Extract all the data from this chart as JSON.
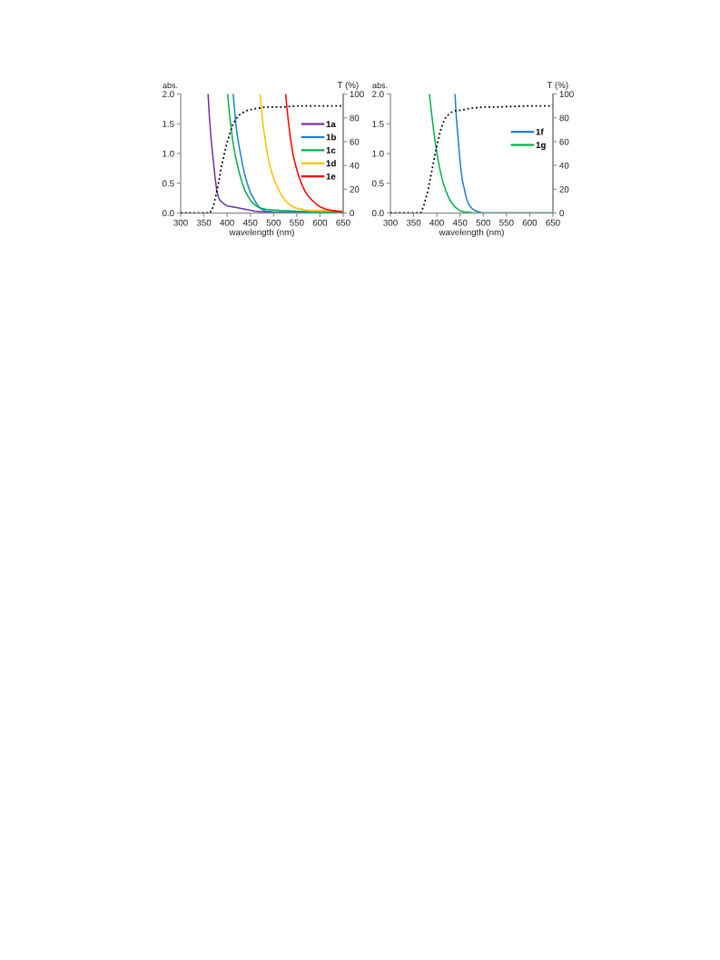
{
  "chart_data": [
    {
      "type": "line",
      "xlabel": "wavelength (nm)",
      "ylabel": "abs.",
      "y2label": "T (%)",
      "xlim": [
        300,
        650
      ],
      "xticks": [
        300,
        350,
        400,
        450,
        500,
        550,
        600,
        650
      ],
      "ylim": [
        0,
        2.0
      ],
      "yticks": [
        {
          "value": 0,
          "label": "0.0"
        },
        {
          "value": 0.5,
          "label": "0.5"
        },
        {
          "value": 1.0,
          "label": "1.0"
        },
        {
          "value": 1.5,
          "label": "1.5"
        },
        {
          "value": 2.0,
          "label": "2.0"
        }
      ],
      "y2lim": [
        0,
        100
      ],
      "y2ticks": [
        0,
        20,
        40,
        60,
        80,
        100
      ],
      "legend": "top right",
      "series": [
        {
          "name": "1a",
          "color": "#7030a0",
          "x": [
            359,
            362,
            366,
            370,
            374,
            378,
            382,
            386,
            392,
            400,
            420,
            440,
            460,
            480,
            500,
            550,
            650
          ],
          "values": [
            2.0,
            1.6,
            1.2,
            0.9,
            0.6,
            0.36,
            0.25,
            0.2,
            0.16,
            0.12,
            0.09,
            0.06,
            0.03,
            0.02,
            0.01,
            0.01,
            0.0
          ]
        },
        {
          "name": "1b",
          "color": "#1f7ed0",
          "x": [
            413,
            419,
            425,
            432,
            438,
            445,
            451,
            458,
            464,
            471,
            478,
            484,
            500,
            550,
            650
          ],
          "values": [
            2.0,
            1.47,
            1.15,
            0.86,
            0.64,
            0.46,
            0.33,
            0.23,
            0.15,
            0.08,
            0.05,
            0.03,
            0.02,
            0.01,
            0.0
          ]
        },
        {
          "name": "1c",
          "color": "#00b050",
          "x": [
            401,
            406,
            412,
            418,
            425,
            432,
            438,
            445,
            451,
            458,
            464,
            474,
            484,
            500,
            516,
            550,
            582,
            650
          ],
          "values": [
            2.0,
            1.6,
            1.22,
            0.95,
            0.71,
            0.52,
            0.38,
            0.28,
            0.2,
            0.15,
            0.11,
            0.08,
            0.06,
            0.05,
            0.04,
            0.03,
            0.02,
            0.02
          ]
        },
        {
          "name": "1d",
          "color": "#ffc000",
          "x": [
            471,
            477,
            484,
            490,
            497,
            503,
            510,
            516,
            523,
            530,
            536,
            549,
            569,
            614,
            650
          ],
          "values": [
            2.0,
            1.5,
            1.12,
            0.86,
            0.66,
            0.52,
            0.41,
            0.31,
            0.23,
            0.17,
            0.13,
            0.08,
            0.05,
            0.04,
            0.03
          ]
        },
        {
          "name": "1e",
          "color": "#ff0000",
          "x": [
            526,
            531,
            536,
            542,
            549,
            555,
            562,
            568,
            575,
            582,
            588,
            595,
            601,
            614,
            627,
            650
          ],
          "values": [
            2.0,
            1.6,
            1.27,
            0.98,
            0.76,
            0.6,
            0.46,
            0.36,
            0.28,
            0.22,
            0.18,
            0.13,
            0.1,
            0.06,
            0.04,
            0.02
          ]
        },
        {
          "color": "#000000",
          "axis": "y2",
          "line_style": "dotted",
          "x": [
            300,
            363,
            370,
            376,
            383,
            387,
            393,
            399,
            406,
            412,
            419,
            425,
            432,
            442,
            451,
            465,
            484,
            520,
            549,
            600,
            650
          ],
          "values": [
            0,
            0,
            5,
            15,
            28,
            38,
            48,
            58,
            67,
            74,
            79,
            82,
            84,
            86,
            87,
            88,
            89,
            89,
            90,
            90,
            90
          ]
        }
      ]
    },
    {
      "type": "line",
      "xlabel": "wavelength (nm)",
      "ylabel": "abs.",
      "y2label": "T (%)",
      "xlim": [
        300,
        650
      ],
      "xticks": [
        300,
        350,
        400,
        450,
        500,
        550,
        600,
        650
      ],
      "ylim": [
        0,
        2.0
      ],
      "yticks": [
        {
          "value": 0,
          "label": "0.0"
        },
        {
          "value": 0.5,
          "label": "0.5"
        },
        {
          "value": 1.0,
          "label": "1.0"
        },
        {
          "value": 1.5,
          "label": "1.5"
        },
        {
          "value": 2.0,
          "label": "2.0"
        }
      ],
      "y2lim": [
        0,
        100
      ],
      "y2ticks": [
        0,
        20,
        40,
        60,
        80,
        100
      ],
      "legend": "right",
      "series": [
        {
          "name": "1f",
          "color": "#1f7ed0",
          "x": [
            439,
            442,
            446,
            449,
            452,
            455,
            459,
            462,
            465,
            470,
            475,
            480,
            485,
            490,
            498,
            650
          ],
          "values": [
            2.0,
            1.6,
            1.23,
            0.95,
            0.72,
            0.55,
            0.41,
            0.3,
            0.21,
            0.13,
            0.08,
            0.05,
            0.03,
            0.02,
            0.0,
            0.0
          ]
        },
        {
          "name": "1g",
          "color": "#00b050",
          "x": [
            384,
            389,
            394,
            400,
            407,
            413,
            420,
            426,
            433,
            439,
            446,
            452,
            459,
            470,
            480,
            650
          ],
          "values": [
            2.0,
            1.65,
            1.33,
            1.0,
            0.72,
            0.52,
            0.36,
            0.25,
            0.16,
            0.1,
            0.06,
            0.03,
            0.02,
            0.01,
            0.0,
            0.0
          ]
        },
        {
          "color": "#000000",
          "axis": "y2",
          "line_style": "dotted",
          "x": [
            300,
            365,
            371,
            376,
            381,
            386,
            391,
            396,
            401,
            405,
            410,
            415,
            420,
            426,
            433,
            440,
            446,
            459,
            472,
            500,
            524,
            600,
            650
          ],
          "values": [
            0,
            0,
            5,
            12,
            19,
            29,
            39,
            49,
            58,
            65,
            72,
            77,
            81,
            83,
            85,
            86,
            86,
            87,
            88,
            89,
            89,
            90,
            90
          ]
        }
      ]
    }
  ]
}
